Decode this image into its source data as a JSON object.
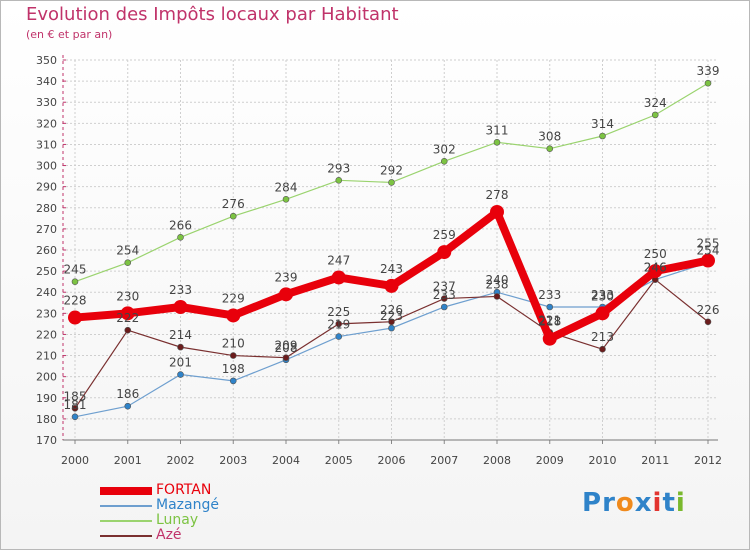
{
  "title": "Evolution des Impôts locaux par Habitant",
  "subtitle": "(en € et par an)",
  "logo": {
    "text": "Proxiti",
    "letters": [
      "P",
      "r",
      "o",
      "x",
      "i",
      "t",
      "i"
    ],
    "letter_colors": [
      "#2f83c9",
      "#2f83c9",
      "#f08a1c",
      "#2f83c9",
      "#e2342f",
      "#2f83c9",
      "#7ab92d"
    ]
  },
  "chart_data": {
    "type": "line",
    "title": "Evolution des Impôts locaux par Habitant",
    "subtitle": "(en € et par an)",
    "xlabel": "",
    "ylabel": "",
    "categories": [
      "2000",
      "2001",
      "2002",
      "2003",
      "2004",
      "2005",
      "2006",
      "2007",
      "2008",
      "2009",
      "2010",
      "2011",
      "2012"
    ],
    "ylim": [
      170,
      350
    ],
    "yticks": [
      170,
      180,
      190,
      200,
      210,
      220,
      230,
      240,
      250,
      260,
      270,
      280,
      290,
      300,
      310,
      320,
      330,
      340,
      350
    ],
    "grid": true,
    "legend_position": "bottom-left",
    "series": [
      {
        "name": "FORTAN",
        "color": "#e8000b",
        "emphasis": true,
        "values": [
          228,
          230,
          233,
          229,
          239,
          247,
          243,
          259,
          278,
          218,
          230,
          250,
          255
        ],
        "labels": [
          "228",
          "230",
          "233",
          "229",
          "239",
          "247",
          "243",
          "259",
          "278",
          "218",
          "230",
          "250",
          "255"
        ]
      },
      {
        "name": "Mazangé",
        "color": "#6e9fcf",
        "marker_color": "#2f83c9",
        "emphasis": false,
        "values": [
          181,
          186,
          201,
          198,
          208,
          219,
          223,
          233,
          240,
          233,
          233,
          246,
          254
        ],
        "labels": [
          "181",
          "186",
          "201",
          "198",
          "208",
          "219",
          "223",
          "233",
          "240",
          "233",
          "233",
          "246",
          "254"
        ]
      },
      {
        "name": "Lunay",
        "color": "#9ad36e",
        "marker_color": "#7cc342",
        "emphasis": false,
        "values": [
          245,
          254,
          266,
          276,
          284,
          293,
          292,
          302,
          311,
          308,
          314,
          324,
          339
        ],
        "labels": [
          "245",
          "254",
          "266",
          "276",
          "284",
          "293",
          "292",
          "302",
          "311",
          "308",
          "314",
          "324",
          "339"
        ]
      },
      {
        "name": "Azé",
        "color": "#7a3030",
        "marker_color": "#6b1c1c",
        "emphasis": false,
        "values": [
          185,
          222,
          214,
          210,
          209,
          225,
          226,
          237,
          238,
          221,
          213,
          246,
          226
        ],
        "labels": [
          "185",
          "222",
          "214",
          "210",
          "209",
          "225",
          "226",
          "237",
          "238",
          "221",
          "213",
          "246",
          "226"
        ]
      }
    ]
  }
}
